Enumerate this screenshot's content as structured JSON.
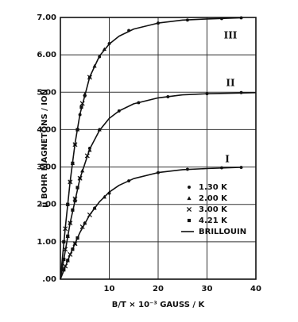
{
  "chart_data": {
    "type": "scatter",
    "x_label": "B/T × 10⁻³ GAUSS / K",
    "y_label": "μ̄ BOHR MAGNETONS / ION",
    "xlim": [
      0,
      40
    ],
    "ylim": [
      0,
      7
    ],
    "xticks": [
      10,
      20,
      30,
      40
    ],
    "yticks": [
      {
        "value": 0,
        "label": ".00"
      },
      {
        "value": 1,
        "label": "1.00"
      },
      {
        "value": 2,
        "label": "2.00"
      },
      {
        "value": 3,
        "label": "3.00"
      },
      {
        "value": 4,
        "label": "4.00"
      },
      {
        "value": 5,
        "label": "5.00"
      },
      {
        "value": 6,
        "label": "6.00"
      },
      {
        "value": 7,
        "label": "7.00"
      }
    ],
    "grid": true,
    "legend": "lower-right",
    "annotations": [
      "III",
      "II",
      "I"
    ],
    "series": [
      {
        "name": "1.30 K",
        "type": "scatter",
        "marker": "circle",
        "color": "#111111",
        "x": [
          2,
          3,
          4,
          5,
          6,
          8,
          10,
          14,
          20,
          26,
          33,
          37,
          2,
          3,
          4,
          6,
          8,
          12,
          16,
          22,
          30,
          37,
          3,
          5,
          7,
          10,
          14,
          20,
          26,
          33,
          37
        ],
        "values": [
          2.6,
          3.6,
          4.4,
          4.9,
          5.4,
          5.95,
          6.3,
          6.65,
          6.85,
          6.93,
          6.97,
          6.99,
          1.5,
          2.15,
          2.7,
          3.5,
          4.0,
          4.5,
          4.72,
          4.88,
          4.96,
          4.99,
          0.95,
          1.5,
          1.9,
          2.3,
          2.63,
          2.85,
          2.94,
          2.98,
          2.99
        ]
      },
      {
        "name": "2.00 K",
        "type": "scatter",
        "marker": "triangle",
        "color": "#111111",
        "x": [
          1.5,
          2.5,
          3.5,
          5,
          7,
          9,
          1.5,
          3,
          4.5,
          6,
          8,
          1.5,
          3,
          5,
          7,
          9
        ],
        "values": [
          2.0,
          3.1,
          4.0,
          4.95,
          5.7,
          6.15,
          1.15,
          2.1,
          2.9,
          3.45,
          4.0,
          0.5,
          0.95,
          1.5,
          1.9,
          2.2
        ]
      },
      {
        "name": "3.00 K",
        "type": "scatter",
        "marker": "cross",
        "color": "#111111",
        "x": [
          1,
          2,
          3,
          4.5,
          6,
          1,
          2,
          3,
          4,
          5.5,
          1,
          2,
          3,
          4.5,
          6
        ],
        "values": [
          1.35,
          2.6,
          3.6,
          4.7,
          5.4,
          0.8,
          1.5,
          2.15,
          2.7,
          3.3,
          0.35,
          0.66,
          0.95,
          1.4,
          1.72
        ]
      },
      {
        "name": "4.21 K",
        "type": "scatter",
        "marker": "square",
        "color": "#111111",
        "x": [
          0.7,
          1.5,
          2.5,
          3.5,
          4.3,
          0.7,
          1.5,
          2.5,
          3.5,
          0.7,
          1.5,
          2.5,
          3.5
        ],
        "values": [
          1.0,
          2.0,
          3.1,
          4.0,
          4.6,
          0.53,
          1.15,
          1.85,
          2.45,
          0.25,
          0.5,
          0.8,
          1.1
        ]
      },
      {
        "name": "BRILLOUIN",
        "type": "line",
        "color": "#111111",
        "x": [
          0,
          1,
          2,
          3,
          4,
          6,
          8,
          10,
          12,
          15,
          20,
          25,
          30,
          37,
          null,
          0,
          2,
          4,
          6,
          8,
          10,
          12,
          15,
          20,
          25,
          30,
          40,
          null,
          0,
          2,
          4,
          6,
          8,
          10,
          12,
          15,
          20,
          25,
          30,
          37
        ],
        "values": [
          0,
          1.38,
          2.62,
          3.64,
          4.41,
          5.41,
          5.97,
          6.29,
          6.5,
          6.69,
          6.85,
          6.93,
          6.96,
          6.99,
          null,
          0,
          1.51,
          2.69,
          3.48,
          3.98,
          4.3,
          4.5,
          4.69,
          4.85,
          4.93,
          4.96,
          4.99,
          null,
          0,
          0.66,
          1.25,
          1.72,
          2.07,
          2.33,
          2.51,
          2.69,
          2.85,
          2.93,
          2.96,
          2.99
        ]
      }
    ]
  }
}
